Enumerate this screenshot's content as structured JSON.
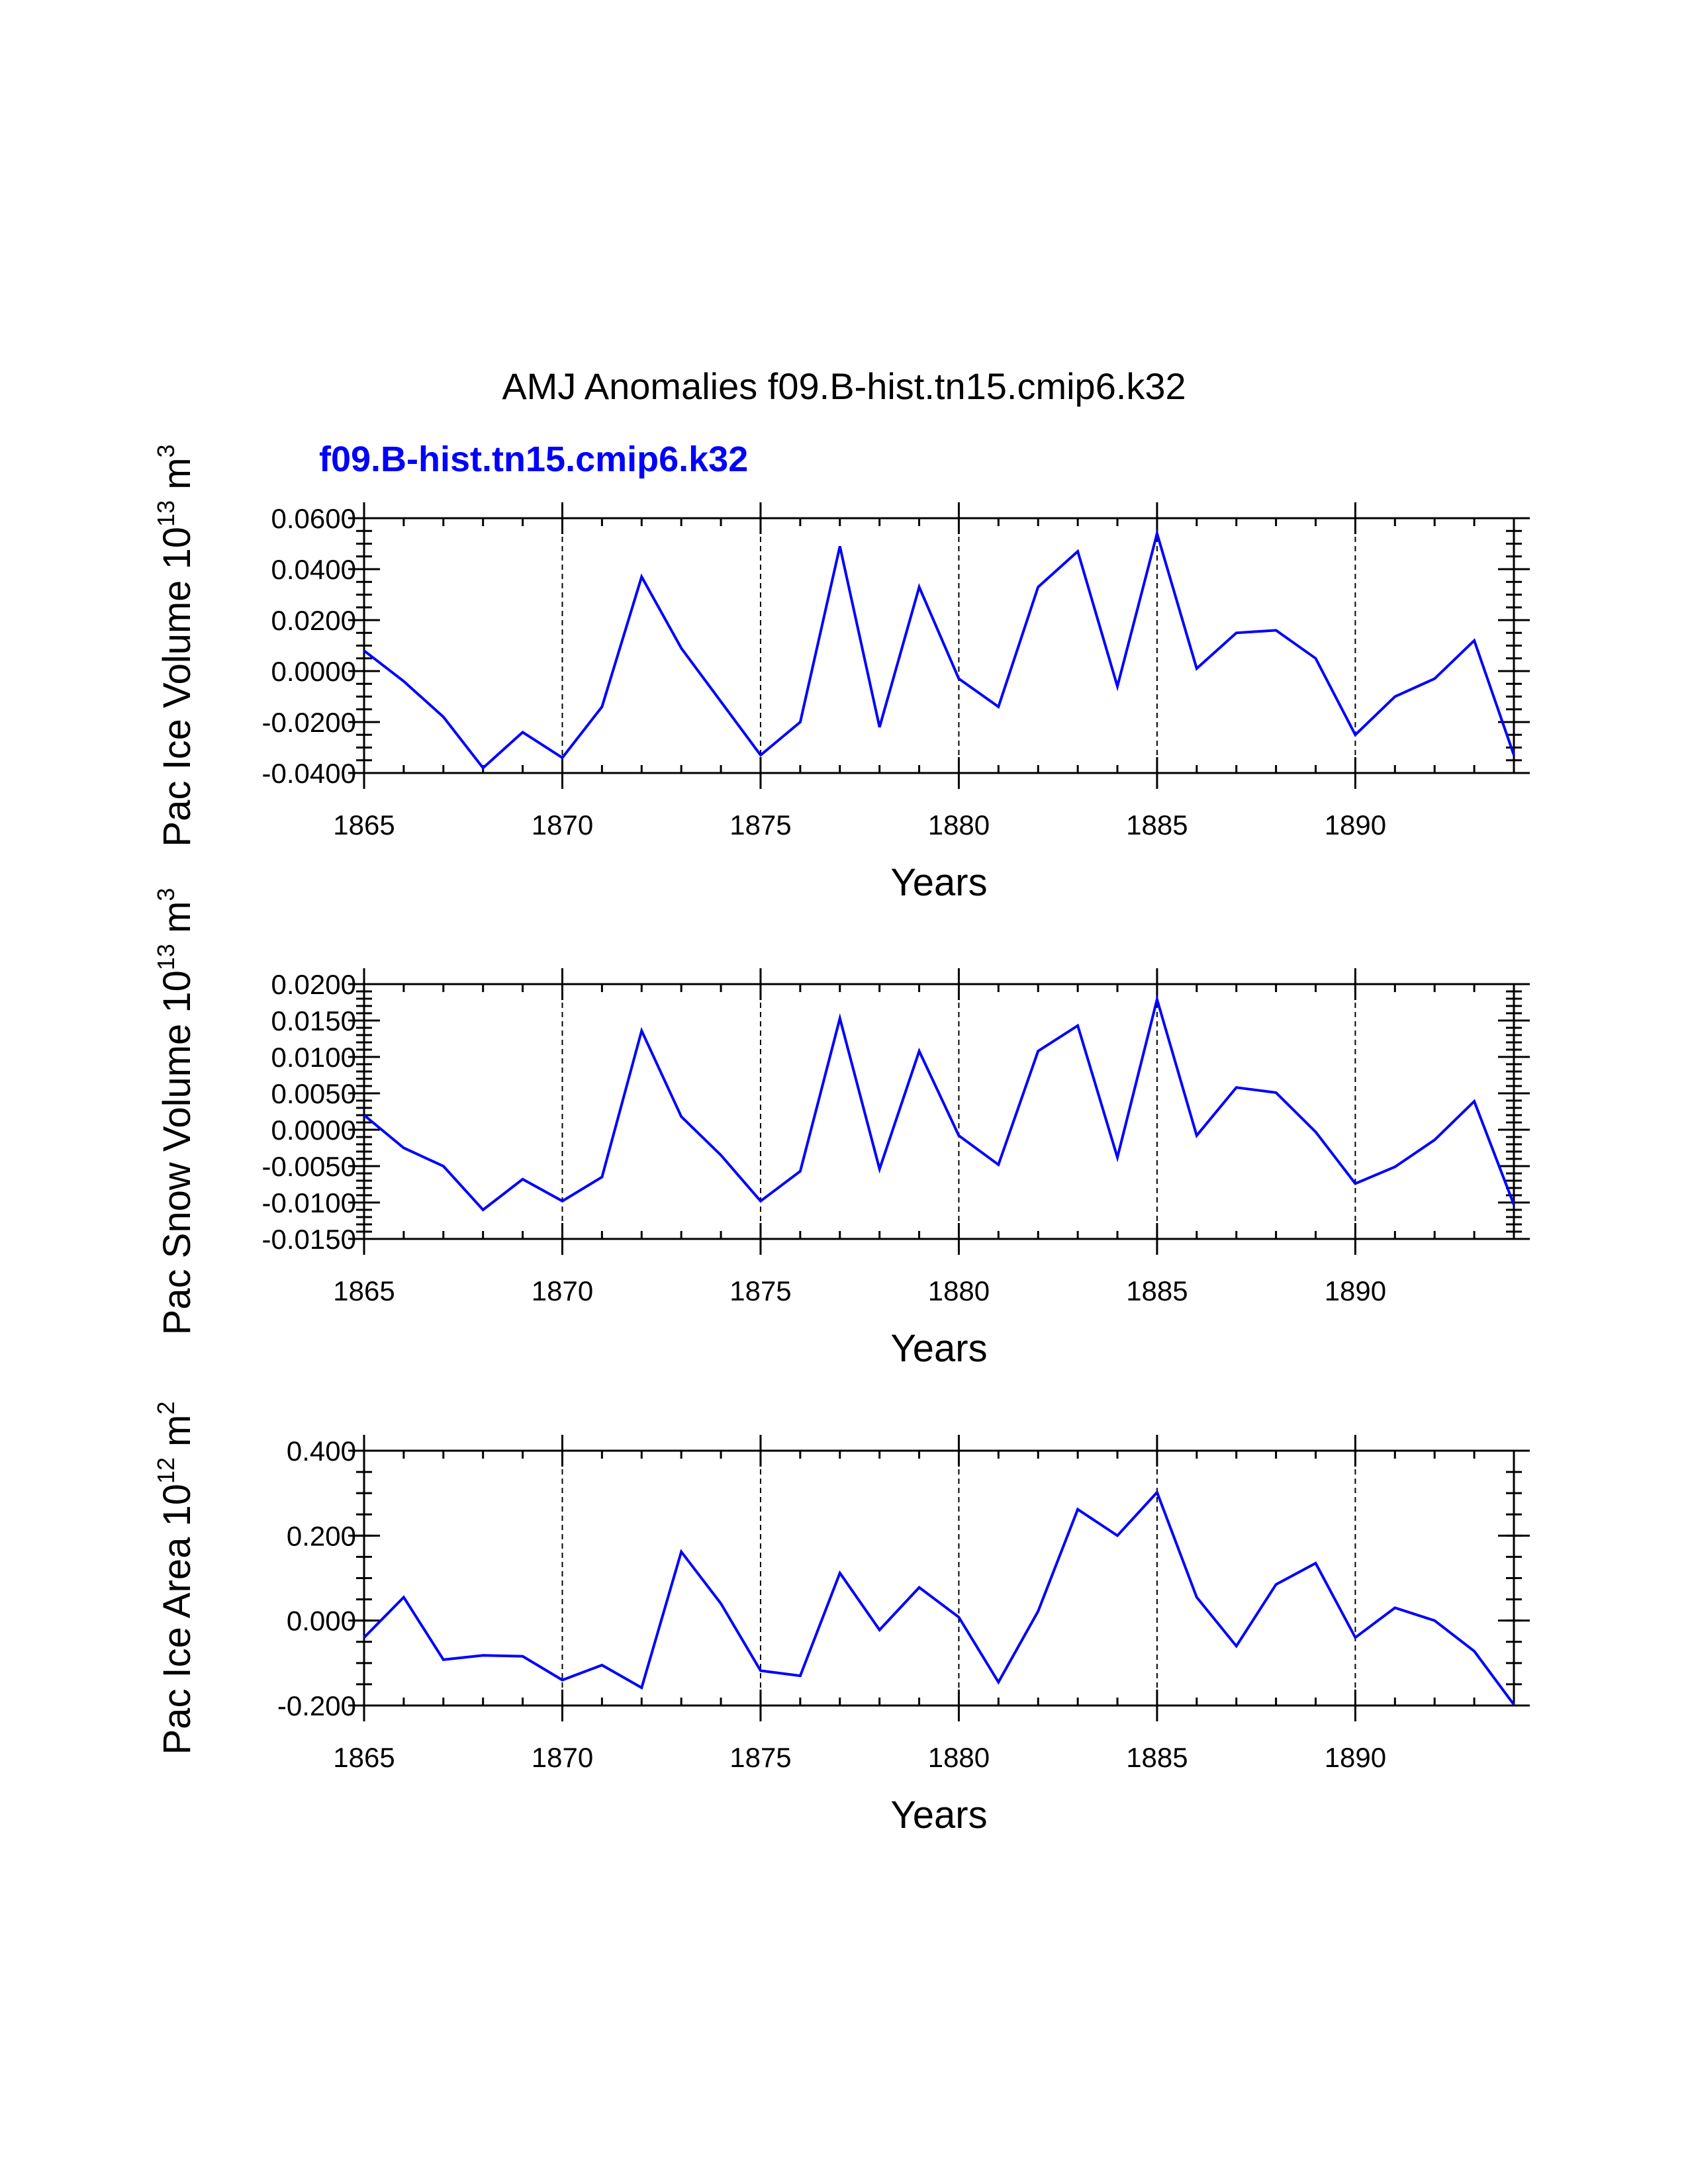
{
  "title": "AMJ Anomalies f09.B-hist.tn15.cmip6.k32",
  "case_label": "f09.B-hist.tn15.cmip6.k32",
  "colors": {
    "line": "#0000ff",
    "case_label": "#0000ff",
    "axis": "#000000"
  },
  "chart_data": [
    {
      "type": "line",
      "name": "pac-ice-volume",
      "ylabel": {
        "main": "Pac Ice Volume 10",
        "exp": "13",
        "unit": " m",
        "unit_exp": "3"
      },
      "xlabel": "Years",
      "xlim": [
        1865,
        1894
      ],
      "ylim": [
        -0.04,
        0.06
      ],
      "xticks": [
        1865,
        1870,
        1875,
        1880,
        1885,
        1890
      ],
      "xtick_labels": [
        "1865",
        "1870",
        "1875",
        "1880",
        "1885",
        "1890"
      ],
      "yticks": [
        -0.04,
        -0.02,
        0.0,
        0.02,
        0.04,
        0.06
      ],
      "ytick_labels": [
        "-0.0400",
        "-0.0200",
        "0.0000",
        "0.0200",
        "0.0400",
        "0.0600"
      ],
      "yminor_step": 0.005,
      "grid_x": [
        1870,
        1875,
        1880,
        1885,
        1890
      ],
      "x": [
        1865,
        1866,
        1867,
        1868,
        1869,
        1870,
        1871,
        1872,
        1873,
        1874,
        1875,
        1876,
        1877,
        1878,
        1879,
        1880,
        1881,
        1882,
        1883,
        1884,
        1885,
        1886,
        1887,
        1888,
        1889,
        1890,
        1891,
        1892,
        1893,
        1894
      ],
      "values": [
        0.008,
        -0.004,
        -0.018,
        -0.038,
        -0.024,
        -0.034,
        -0.014,
        0.037,
        0.009,
        -0.012,
        -0.033,
        -0.02,
        0.049,
        -0.022,
        0.033,
        -0.003,
        -0.014,
        0.033,
        0.047,
        -0.006,
        0.054,
        0.001,
        0.015,
        0.016,
        0.005,
        -0.025,
        -0.01,
        -0.003,
        0.012,
        -0.033
      ]
    },
    {
      "type": "line",
      "name": "pac-snow-volume",
      "ylabel": {
        "main": "Pac Snow Volume 10",
        "exp": "13",
        "unit": " m",
        "unit_exp": "3"
      },
      "xlabel": "Years",
      "xlim": [
        1865,
        1894
      ],
      "ylim": [
        -0.015,
        0.02
      ],
      "xticks": [
        1865,
        1870,
        1875,
        1880,
        1885,
        1890
      ],
      "xtick_labels": [
        "1865",
        "1870",
        "1875",
        "1880",
        "1885",
        "1890"
      ],
      "yticks": [
        -0.015,
        -0.01,
        -0.005,
        0.0,
        0.005,
        0.01,
        0.015,
        0.02
      ],
      "ytick_labels": [
        "-0.0150",
        "-0.0100",
        "-0.0050",
        "0.0000",
        "0.0050",
        "0.0100",
        "0.0150",
        "0.0200"
      ],
      "yminor_step": 0.001,
      "grid_x": [
        1870,
        1875,
        1880,
        1885,
        1890
      ],
      "x": [
        1865,
        1866,
        1867,
        1868,
        1869,
        1870,
        1871,
        1872,
        1873,
        1874,
        1875,
        1876,
        1877,
        1878,
        1879,
        1880,
        1881,
        1882,
        1883,
        1884,
        1885,
        1886,
        1887,
        1888,
        1889,
        1890,
        1891,
        1892,
        1893,
        1894
      ],
      "values": [
        0.002,
        -0.0025,
        -0.005,
        -0.011,
        -0.0068,
        -0.0098,
        -0.0065,
        0.0136,
        0.0018,
        -0.0035,
        -0.0098,
        -0.0057,
        0.0153,
        -0.0054,
        0.0108,
        -0.0008,
        -0.0048,
        0.0108,
        0.0143,
        -0.0038,
        0.0179,
        -0.0008,
        0.0058,
        0.0051,
        -0.0003,
        -0.0074,
        -0.0051,
        -0.0014,
        0.0039,
        -0.0103
      ]
    },
    {
      "type": "line",
      "name": "pac-ice-area",
      "ylabel": {
        "main": "Pac Ice Area 10",
        "exp": "12",
        "unit": " m",
        "unit_exp": "2"
      },
      "xlabel": "Years",
      "xlim": [
        1865,
        1894
      ],
      "ylim": [
        -0.2,
        0.4
      ],
      "xticks": [
        1865,
        1870,
        1875,
        1880,
        1885,
        1890
      ],
      "xtick_labels": [
        "1865",
        "1870",
        "1875",
        "1880",
        "1885",
        "1890"
      ],
      "yticks": [
        -0.2,
        0.0,
        0.2,
        0.4
      ],
      "ytick_labels": [
        "-0.200",
        "0.000",
        "0.200",
        "0.400"
      ],
      "yminor_step": 0.05,
      "grid_x": [
        1870,
        1875,
        1880,
        1885,
        1890
      ],
      "x": [
        1865,
        1866,
        1867,
        1868,
        1869,
        1870,
        1871,
        1872,
        1873,
        1874,
        1875,
        1876,
        1877,
        1878,
        1879,
        1880,
        1881,
        1882,
        1883,
        1884,
        1885,
        1886,
        1887,
        1888,
        1889,
        1890,
        1891,
        1892,
        1893,
        1894
      ],
      "values": [
        -0.04,
        0.055,
        -0.092,
        -0.082,
        -0.084,
        -0.14,
        -0.105,
        -0.158,
        0.162,
        0.04,
        -0.118,
        -0.13,
        0.112,
        -0.022,
        0.078,
        0.008,
        -0.145,
        0.022,
        0.262,
        0.2,
        0.302,
        0.055,
        -0.06,
        0.085,
        0.135,
        -0.04,
        0.03,
        0.0,
        -0.072,
        -0.198
      ]
    }
  ]
}
